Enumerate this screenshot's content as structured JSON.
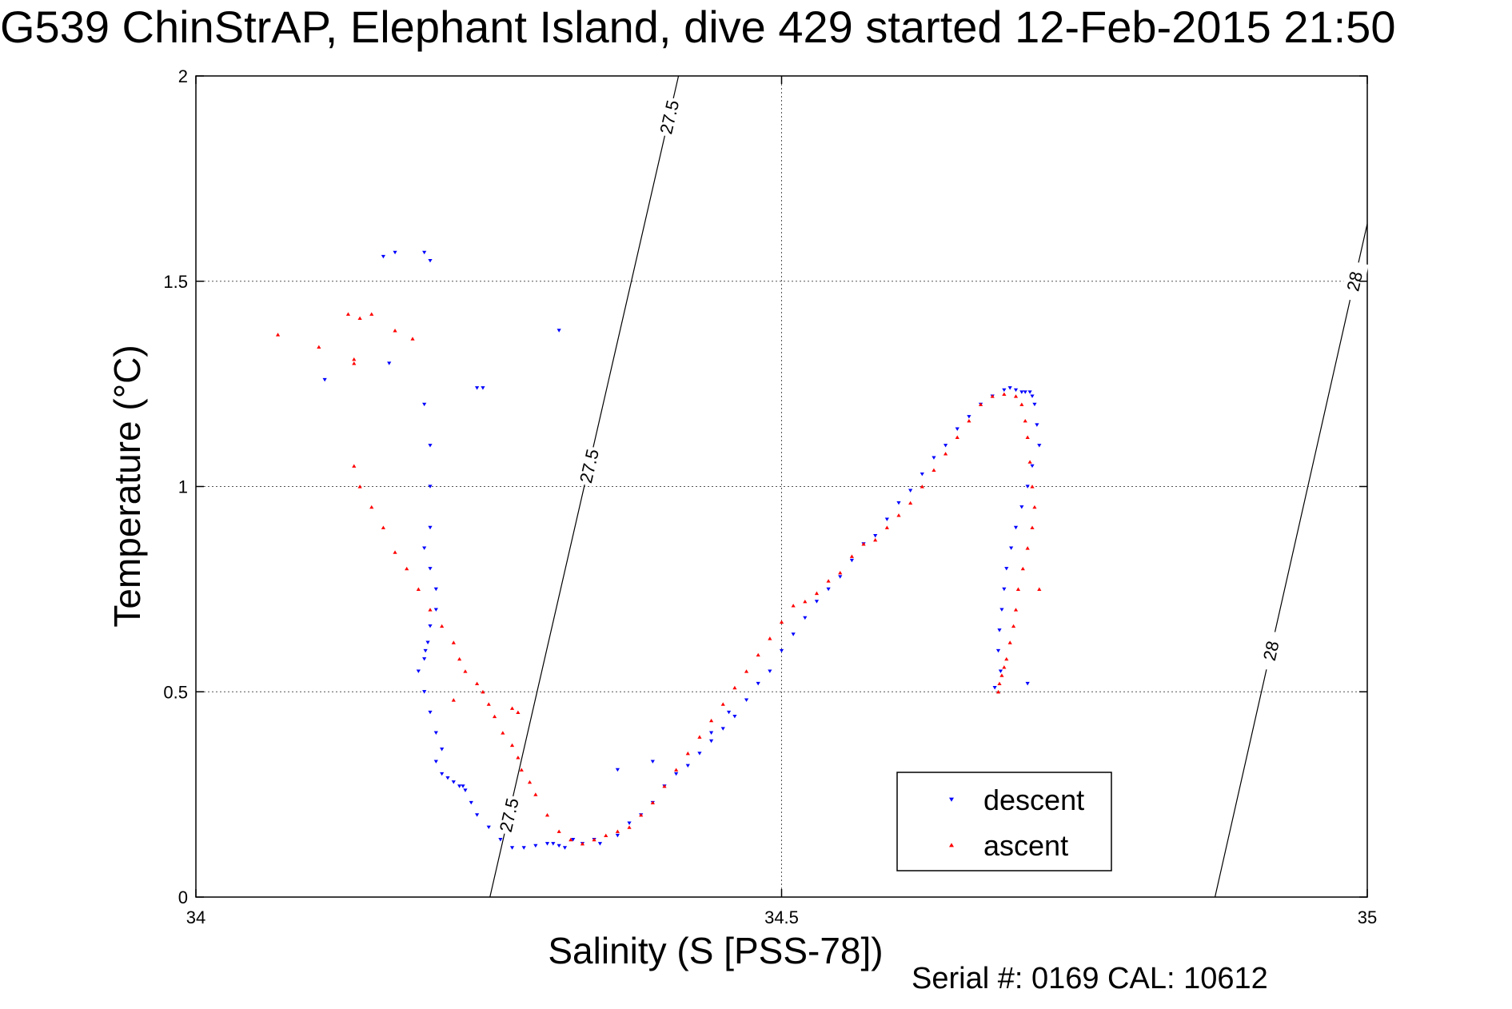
{
  "title": "G539 ChinStrAP, Elephant Island, dive 429 started 12-Feb-2015 21:50",
  "serial_text": "Serial #: 0169 CAL: 10612",
  "colors": {
    "descent": "#0000ff",
    "ascent": "#ff0000",
    "grid": "#555555",
    "contour": "#000000"
  },
  "chart_data": {
    "type": "scatter",
    "title": "G539 ChinStrAP, Elephant Island, dive 429 started 12-Feb-2015 21:50",
    "xlabel": "Salinity (S [PSS-78])",
    "ylabel": "Temperature (°C)",
    "xlim": [
      34,
      35
    ],
    "ylim": [
      0,
      2
    ],
    "xticks": [
      34,
      34.5,
      35
    ],
    "xtick_labels": [
      "34",
      "34.5",
      "35"
    ],
    "yticks": [
      0,
      0.5,
      1,
      1.5,
      2
    ],
    "ytick_labels": [
      "0",
      "0.5",
      "1",
      "1.5",
      "2"
    ],
    "grid": true,
    "legend_position": "lower-right",
    "contours": [
      {
        "label": "27.5",
        "x": [
          34.251,
          34.412
        ],
        "y": [
          0,
          2
        ],
        "label_y": [
          0.2,
          1.05,
          1.9
        ]
      },
      {
        "label": "28",
        "x": [
          34.87,
          35
        ],
        "y": [
          0,
          1.64
        ],
        "label_y": [
          0.6,
          1.5
        ]
      }
    ],
    "series": [
      {
        "name": "descent",
        "marker": "triangle-down",
        "x": [
          34.17,
          34.195,
          34.2,
          34.16,
          34.11,
          34.165,
          34.24,
          34.245,
          34.31,
          34.195,
          34.2,
          34.2,
          34.2,
          34.195,
          34.2,
          34.205,
          34.205,
          34.2,
          34.198,
          34.196,
          34.195,
          34.19,
          34.195,
          34.2,
          34.205,
          34.21,
          34.205,
          34.21,
          34.215,
          34.22,
          34.225,
          34.228,
          34.23,
          34.235,
          34.24,
          34.25,
          34.26,
          34.27,
          34.28,
          34.29,
          34.3,
          34.305,
          34.31,
          34.315,
          34.322,
          34.33,
          34.345,
          34.36,
          34.37,
          34.38,
          34.39,
          34.4,
          34.41,
          34.42,
          34.43,
          34.44,
          34.45,
          34.46,
          34.47,
          34.48,
          34.49,
          34.5,
          34.51,
          34.52,
          34.53,
          34.54,
          34.55,
          34.56,
          34.57,
          34.58,
          34.59,
          34.6,
          34.61,
          34.62,
          34.63,
          34.64,
          34.65,
          34.66,
          34.67,
          34.68,
          34.69,
          34.695,
          34.7,
          34.705,
          34.708,
          34.712,
          34.714,
          34.716,
          34.718,
          34.72,
          34.714,
          34.71,
          34.705,
          34.7,
          34.696,
          34.692,
          34.69,
          34.688,
          34.686,
          34.685,
          34.687,
          34.682,
          34.71,
          34.44,
          34.455,
          34.39,
          34.36,
          34.34
        ],
        "y": [
          1.57,
          1.57,
          1.55,
          1.56,
          1.26,
          1.3,
          1.24,
          1.24,
          1.38,
          1.2,
          1.1,
          1.0,
          0.9,
          0.85,
          0.8,
          0.75,
          0.7,
          0.66,
          0.62,
          0.6,
          0.58,
          0.55,
          0.5,
          0.45,
          0.4,
          0.36,
          0.33,
          0.3,
          0.29,
          0.28,
          0.27,
          0.27,
          0.26,
          0.23,
          0.2,
          0.17,
          0.14,
          0.12,
          0.12,
          0.125,
          0.13,
          0.13,
          0.125,
          0.12,
          0.14,
          0.13,
          0.13,
          0.15,
          0.18,
          0.2,
          0.23,
          0.27,
          0.3,
          0.32,
          0.35,
          0.38,
          0.41,
          0.44,
          0.48,
          0.52,
          0.55,
          0.6,
          0.64,
          0.68,
          0.72,
          0.75,
          0.78,
          0.82,
          0.86,
          0.88,
          0.92,
          0.96,
          0.99,
          1.03,
          1.07,
          1.1,
          1.14,
          1.17,
          1.2,
          1.22,
          1.235,
          1.24,
          1.235,
          1.23,
          1.23,
          1.23,
          1.22,
          1.2,
          1.15,
          1.1,
          1.05,
          1.0,
          0.95,
          0.9,
          0.85,
          0.8,
          0.75,
          0.7,
          0.65,
          0.6,
          0.55,
          0.51,
          0.52,
          0.4,
          0.45,
          0.33,
          0.31,
          0.14
        ]
      },
      {
        "name": "ascent",
        "marker": "triangle-up",
        "x": [
          34.07,
          34.105,
          34.13,
          34.135,
          34.14,
          34.15,
          34.17,
          34.185,
          34.135,
          34.135,
          34.14,
          34.15,
          34.16,
          34.17,
          34.18,
          34.19,
          34.2,
          34.21,
          34.22,
          34.225,
          34.23,
          34.24,
          34.245,
          34.25,
          34.255,
          34.262,
          34.27,
          34.275,
          34.278,
          34.285,
          34.29,
          34.3,
          34.31,
          34.32,
          34.33,
          34.34,
          34.35,
          34.36,
          34.37,
          34.38,
          34.39,
          34.4,
          34.41,
          34.42,
          34.43,
          34.44,
          34.45,
          34.46,
          34.47,
          34.48,
          34.49,
          34.5,
          34.51,
          34.52,
          34.53,
          34.54,
          34.55,
          34.56,
          34.57,
          34.58,
          34.59,
          34.6,
          34.61,
          34.62,
          34.63,
          34.64,
          34.65,
          34.66,
          34.67,
          34.68,
          34.69,
          34.7,
          34.705,
          34.708,
          34.71,
          34.712,
          34.714,
          34.716,
          34.714,
          34.71,
          34.706,
          34.702,
          34.7,
          34.698,
          34.695,
          34.692,
          34.69,
          34.688,
          34.686,
          34.685,
          34.72,
          34.27,
          34.275,
          34.22
        ],
        "y": [
          1.37,
          1.34,
          1.42,
          1.31,
          1.41,
          1.42,
          1.38,
          1.36,
          1.3,
          1.05,
          1.0,
          0.95,
          0.9,
          0.84,
          0.8,
          0.75,
          0.7,
          0.66,
          0.62,
          0.58,
          0.55,
          0.52,
          0.5,
          0.47,
          0.44,
          0.4,
          0.37,
          0.34,
          0.31,
          0.28,
          0.25,
          0.2,
          0.16,
          0.14,
          0.13,
          0.14,
          0.15,
          0.16,
          0.17,
          0.2,
          0.23,
          0.27,
          0.31,
          0.35,
          0.39,
          0.43,
          0.47,
          0.51,
          0.55,
          0.59,
          0.63,
          0.67,
          0.71,
          0.72,
          0.74,
          0.77,
          0.79,
          0.83,
          0.86,
          0.87,
          0.9,
          0.93,
          0.96,
          1.0,
          1.04,
          1.08,
          1.12,
          1.16,
          1.2,
          1.22,
          1.225,
          1.22,
          1.2,
          1.16,
          1.12,
          1.06,
          1.0,
          0.95,
          0.9,
          0.85,
          0.8,
          0.75,
          0.7,
          0.66,
          0.62,
          0.58,
          0.56,
          0.54,
          0.52,
          0.5,
          0.75,
          0.46,
          0.45,
          0.48
        ]
      }
    ]
  }
}
